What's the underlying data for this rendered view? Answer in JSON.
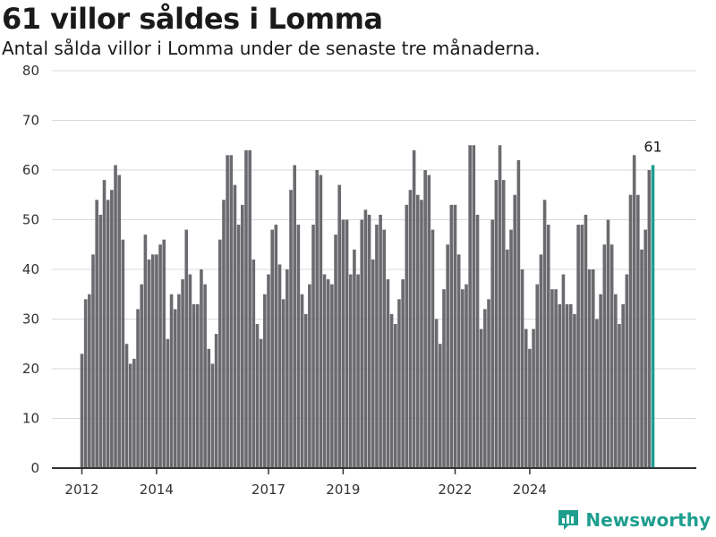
{
  "colors": {
    "bar": "#6b6a6f",
    "highlight": "#1f9e8f",
    "grid": "#d9d9d9",
    "axis": "#333333",
    "brand": "#1f9e8f"
  },
  "brand": {
    "name": "Newsworthy",
    "icon": "newsworthy-chart-icon"
  },
  "chart_data": {
    "type": "bar",
    "title": "61 villor såldes i Lomma",
    "subtitle": "Antal sålda villor i Lomma under de senaste tre månaderna.",
    "xlabel": "",
    "ylabel": "",
    "ylim": [
      0,
      80
    ],
    "yticks": [
      0,
      10,
      20,
      30,
      40,
      50,
      60,
      70,
      80
    ],
    "xtick_labels": [
      "2012",
      "2014",
      "2017",
      "2019",
      "2022",
      "2024"
    ],
    "xtick_at_index": [
      0,
      20,
      50,
      70,
      100,
      120
    ],
    "grid": true,
    "highlight_label": "61",
    "values": [
      23,
      34,
      35,
      43,
      54,
      51,
      58,
      54,
      56,
      61,
      59,
      46,
      25,
      21,
      22,
      32,
      37,
      47,
      42,
      43,
      43,
      45,
      46,
      26,
      35,
      32,
      35,
      38,
      48,
      39,
      33,
      33,
      40,
      37,
      24,
      21,
      27,
      46,
      54,
      63,
      63,
      57,
      49,
      53,
      64,
      64,
      42,
      29,
      26,
      35,
      39,
      48,
      49,
      41,
      34,
      40,
      56,
      61,
      49,
      35,
      31,
      37,
      49,
      60,
      59,
      39,
      38,
      37,
      47,
      57,
      50,
      50,
      39,
      44,
      39,
      50,
      52,
      51,
      42,
      49,
      51,
      48,
      38,
      31,
      29,
      34,
      38,
      53,
      56,
      64,
      55,
      54,
      60,
      59,
      48,
      30,
      25,
      36,
      45,
      53,
      53,
      43,
      36,
      37,
      65,
      65,
      51,
      28,
      32,
      34,
      50,
      58,
      65,
      58,
      44,
      48,
      55,
      62,
      40,
      28,
      24,
      28,
      37,
      43,
      54,
      49,
      36,
      36,
      33,
      39,
      33,
      33,
      31,
      49,
      49,
      51,
      40,
      40,
      30,
      35,
      45,
      50,
      45,
      35,
      29,
      33,
      39,
      55,
      63,
      55,
      44,
      48,
      60,
      61
    ]
  }
}
